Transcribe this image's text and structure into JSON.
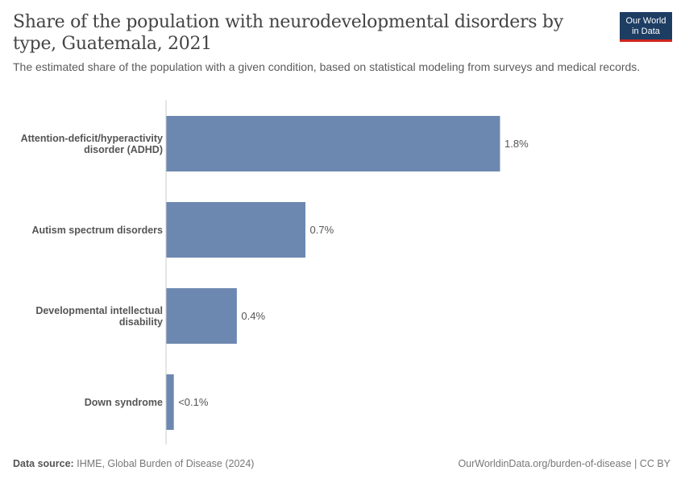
{
  "title": "Share of the population with neurodevelopmental disorders by type, Guatemala, 2021",
  "subtitle": "The estimated share of the population with a given condition, based on statistical modeling from surveys and medical records.",
  "logo": {
    "line1": "Our World",
    "line2": "in Data"
  },
  "footer": {
    "source_label": "Data source:",
    "source_text": "IHME, Global Burden of Disease (2024)",
    "url_text": "OurWorldinData.org/burden-of-disease | CC BY"
  },
  "colors": {
    "bar": "#6d88b0",
    "axis": "#cccccc"
  },
  "chart_data": {
    "type": "bar",
    "orientation": "horizontal",
    "title": "Share of the population with neurodevelopmental disorders by type, Guatemala, 2021",
    "unit": "%",
    "categories": [
      [
        "Attention-deficit/hyperactivity",
        "disorder (ADHD)"
      ],
      [
        "Autism spectrum disorders"
      ],
      [
        "Developmental intellectual",
        "disability"
      ],
      [
        "Down syndrome"
      ]
    ],
    "values": [
      1.8,
      0.75,
      0.38,
      0.04
    ],
    "value_labels": [
      "1.8%",
      "0.7%",
      "0.4%",
      "<0.1%"
    ],
    "xlim": [
      0,
      1.8
    ],
    "grid": false
  }
}
